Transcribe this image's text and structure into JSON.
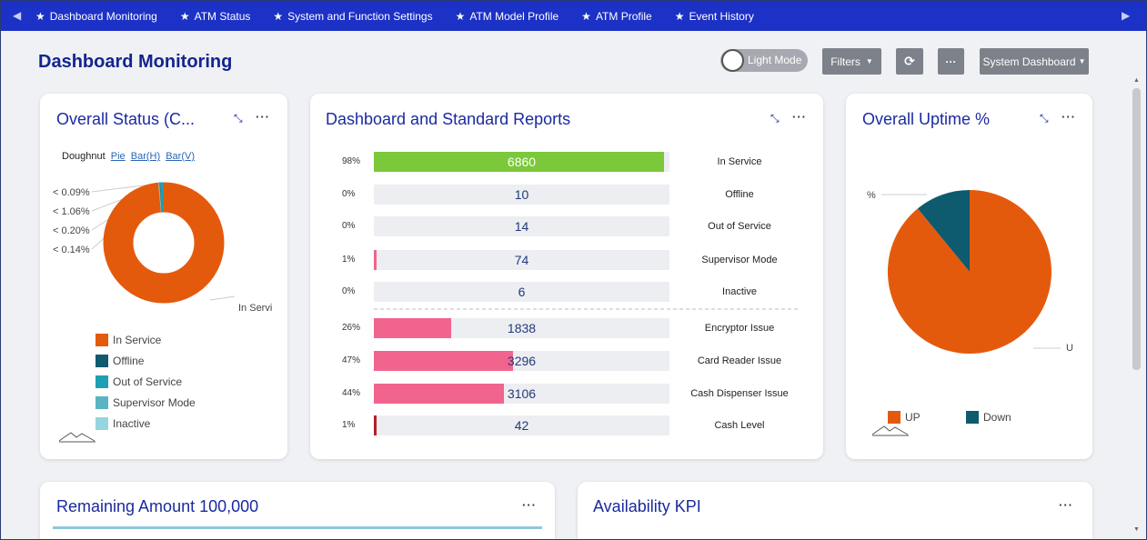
{
  "nav": {
    "items": [
      {
        "label": "Dashboard Monitoring"
      },
      {
        "label": "ATM Status"
      },
      {
        "label": "System and Function Settings"
      },
      {
        "label": "ATM Model Profile"
      },
      {
        "label": "ATM Profile"
      },
      {
        "label": "Event History"
      }
    ]
  },
  "page": {
    "title": "Dashboard Monitoring"
  },
  "toolbar": {
    "mode_label": "Light Mode",
    "filters_label": "Filters",
    "dashboard_select": "System Dashboard"
  },
  "overall_status": {
    "title": "Overall Status (C...",
    "chart_types": {
      "current": "Doughnut",
      "options": [
        "Pie",
        "Bar(H)",
        "Bar(V)"
      ]
    },
    "slice_labels": [
      "< 0.09%",
      "< 1.06%",
      "< 0.20%",
      "< 0.14%",
      "In Servi"
    ],
    "legend": [
      {
        "label": "In Service",
        "color": "#e45a0c"
      },
      {
        "label": "Offline",
        "color": "#0e5a6e"
      },
      {
        "label": "Out of Service",
        "color": "#1e9fb2"
      },
      {
        "label": "Supervisor Mode",
        "color": "#5bb4c4"
      },
      {
        "label": "Inactive",
        "color": "#96d5df"
      }
    ]
  },
  "reports": {
    "title": "Dashboard and Standard Reports",
    "rows": [
      {
        "pct": "98%",
        "value": "6860",
        "label": "In Service",
        "fill": 0.98,
        "color": "#7bc83a"
      },
      {
        "pct": "0%",
        "value": "10",
        "label": "Offline",
        "fill": 0,
        "color": "#7bc83a"
      },
      {
        "pct": "0%",
        "value": "14",
        "label": "Out of Service",
        "fill": 0,
        "color": "#7bc83a"
      },
      {
        "pct": "1%",
        "value": "74",
        "label": "Supervisor Mode",
        "fill": 0.01,
        "color": "#f0648e"
      },
      {
        "pct": "0%",
        "value": "6",
        "label": "Inactive",
        "fill": 0,
        "color": "#f0648e"
      },
      {
        "pct": "26%",
        "value": "1838",
        "label": "Encryptor Issue",
        "fill": 0.26,
        "color": "#f0648e"
      },
      {
        "pct": "47%",
        "value": "3296",
        "label": "Card Reader Issue",
        "fill": 0.47,
        "color": "#f0648e"
      },
      {
        "pct": "44%",
        "value": "3106",
        "label": "Cash Dispenser Issue",
        "fill": 0.44,
        "color": "#f0648e"
      },
      {
        "pct": "1%",
        "value": "42",
        "label": "Cash Level",
        "fill": 0.01,
        "color": "#b0202a"
      }
    ]
  },
  "uptime": {
    "title": "Overall Uptime %",
    "slice_labels": [
      "%",
      "U"
    ],
    "legend": [
      {
        "label": "UP",
        "color": "#e45a0c"
      },
      {
        "label": "Down",
        "color": "#0e5a6e"
      }
    ]
  },
  "remaining": {
    "title": "Remaining Amount 100,000"
  },
  "availability": {
    "title": "Availability KPI"
  },
  "colors": {
    "nav": "#1c31c6",
    "title": "#14248f",
    "in_service": "#e45a0c",
    "offline": "#0e5a6e"
  }
}
